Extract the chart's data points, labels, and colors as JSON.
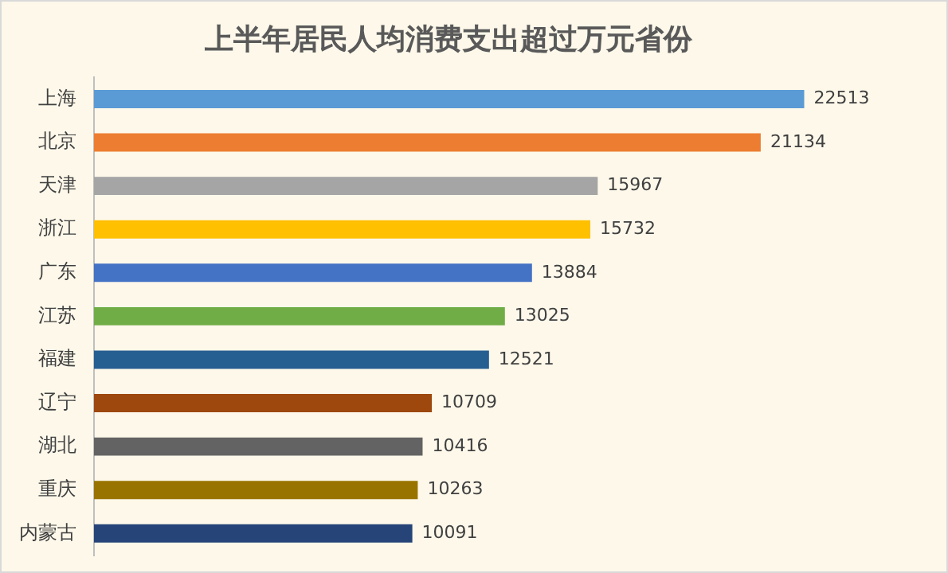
{
  "chart_data": {
    "type": "bar",
    "orientation": "horizontal",
    "title": "上半年居民人均消费支出超过万元省份",
    "categories": [
      "上海",
      "北京",
      "天津",
      "浙江",
      "广东",
      "江苏",
      "福建",
      "辽宁",
      "湖北",
      "重庆",
      "内蒙古"
    ],
    "values": [
      22513,
      21134,
      15967,
      15732,
      13884,
      13025,
      12521,
      10709,
      10416,
      10263,
      10091
    ],
    "colors": [
      "#5b9bd5",
      "#ed7d31",
      "#a5a5a5",
      "#ffc000",
      "#4472c4",
      "#70ad47",
      "#255e91",
      "#9e480e",
      "#636363",
      "#997300",
      "#264478"
    ],
    "data_labels": true,
    "legend": false
  }
}
